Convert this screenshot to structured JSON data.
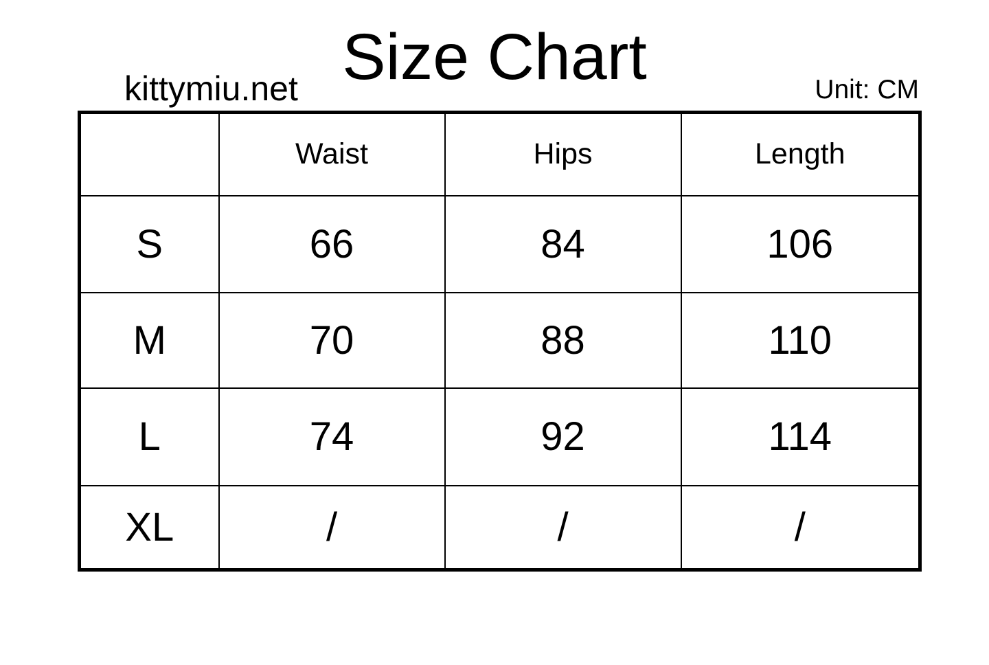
{
  "header": {
    "title": "Size Chart",
    "site": "kittymiu.net",
    "unit_label": "Unit: CM"
  },
  "chart_data": {
    "type": "table",
    "title": "Size Chart",
    "unit": "CM",
    "source": "kittymiu.net",
    "columns": [
      "",
      "Waist",
      "Hips",
      "Length"
    ],
    "rows": [
      [
        "S",
        "66",
        "84",
        "106"
      ],
      [
        "M",
        "70",
        "88",
        "110"
      ],
      [
        "L",
        "74",
        "92",
        "114"
      ],
      [
        "XL",
        "/",
        "/",
        "/"
      ]
    ]
  },
  "colors": {
    "background": "#ffffff",
    "text": "#000000",
    "border": "#000000"
  }
}
